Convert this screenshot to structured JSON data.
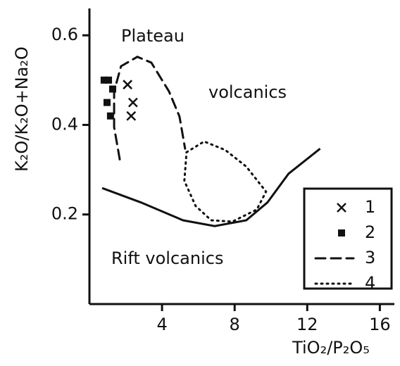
{
  "chart_data": {
    "type": "scatter",
    "x_label": "TiO₂/P₂O₅",
    "y_label": "K₂O/K₂O+Na₂O",
    "annotations": [
      "Plateau",
      "volcanics",
      "Rift volcanics"
    ],
    "xlim": [
      0,
      16.8
    ],
    "ylim": [
      0,
      0.66
    ],
    "xticks": [
      4,
      8,
      12,
      16
    ],
    "yticks": [
      0.2,
      0.4,
      0.6
    ],
    "legend": "lower right",
    "series": [
      {
        "name": "1",
        "color": "#111111",
        "marker": "x",
        "x": [
          2.1,
          2.4,
          2.3
        ],
        "values": [
          0.49,
          0.45,
          0.42
        ]
      },
      {
        "name": "2",
        "color": "#111111",
        "marker": "square",
        "x": [
          0.81,
          1.05,
          1.28,
          0.97,
          1.16
        ],
        "values": [
          0.5,
          0.5,
          0.48,
          0.45,
          0.42
        ]
      },
      {
        "name": "3",
        "color": "#111111",
        "line_style": "dashed",
        "x": [
          1.67,
          1.36,
          1.36,
          1.74,
          2.64,
          3.41,
          4.38,
          4.96,
          5.27
        ],
        "values": [
          0.323,
          0.395,
          0.475,
          0.531,
          0.552,
          0.539,
          0.475,
          0.419,
          0.347
        ]
      },
      {
        "name": "4",
        "color": "#111111",
        "line_style": "dotted",
        "x": [
          5.35,
          6.32,
          7.48,
          8.64,
          9.73,
          9.22,
          7.87,
          6.71,
          5.85,
          5.23,
          5.35
        ],
        "values": [
          0.339,
          0.363,
          0.344,
          0.307,
          0.251,
          0.211,
          0.184,
          0.187,
          0.219,
          0.275,
          0.339
        ]
      }
    ],
    "boundary": {
      "color": "#111111",
      "x": [
        0.7,
        2.83,
        5.16,
        6.9,
        8.64,
        9.81,
        10.97,
        12.71
      ],
      "values": [
        0.259,
        0.227,
        0.187,
        0.174,
        0.187,
        0.227,
        0.291,
        0.347
      ]
    }
  }
}
